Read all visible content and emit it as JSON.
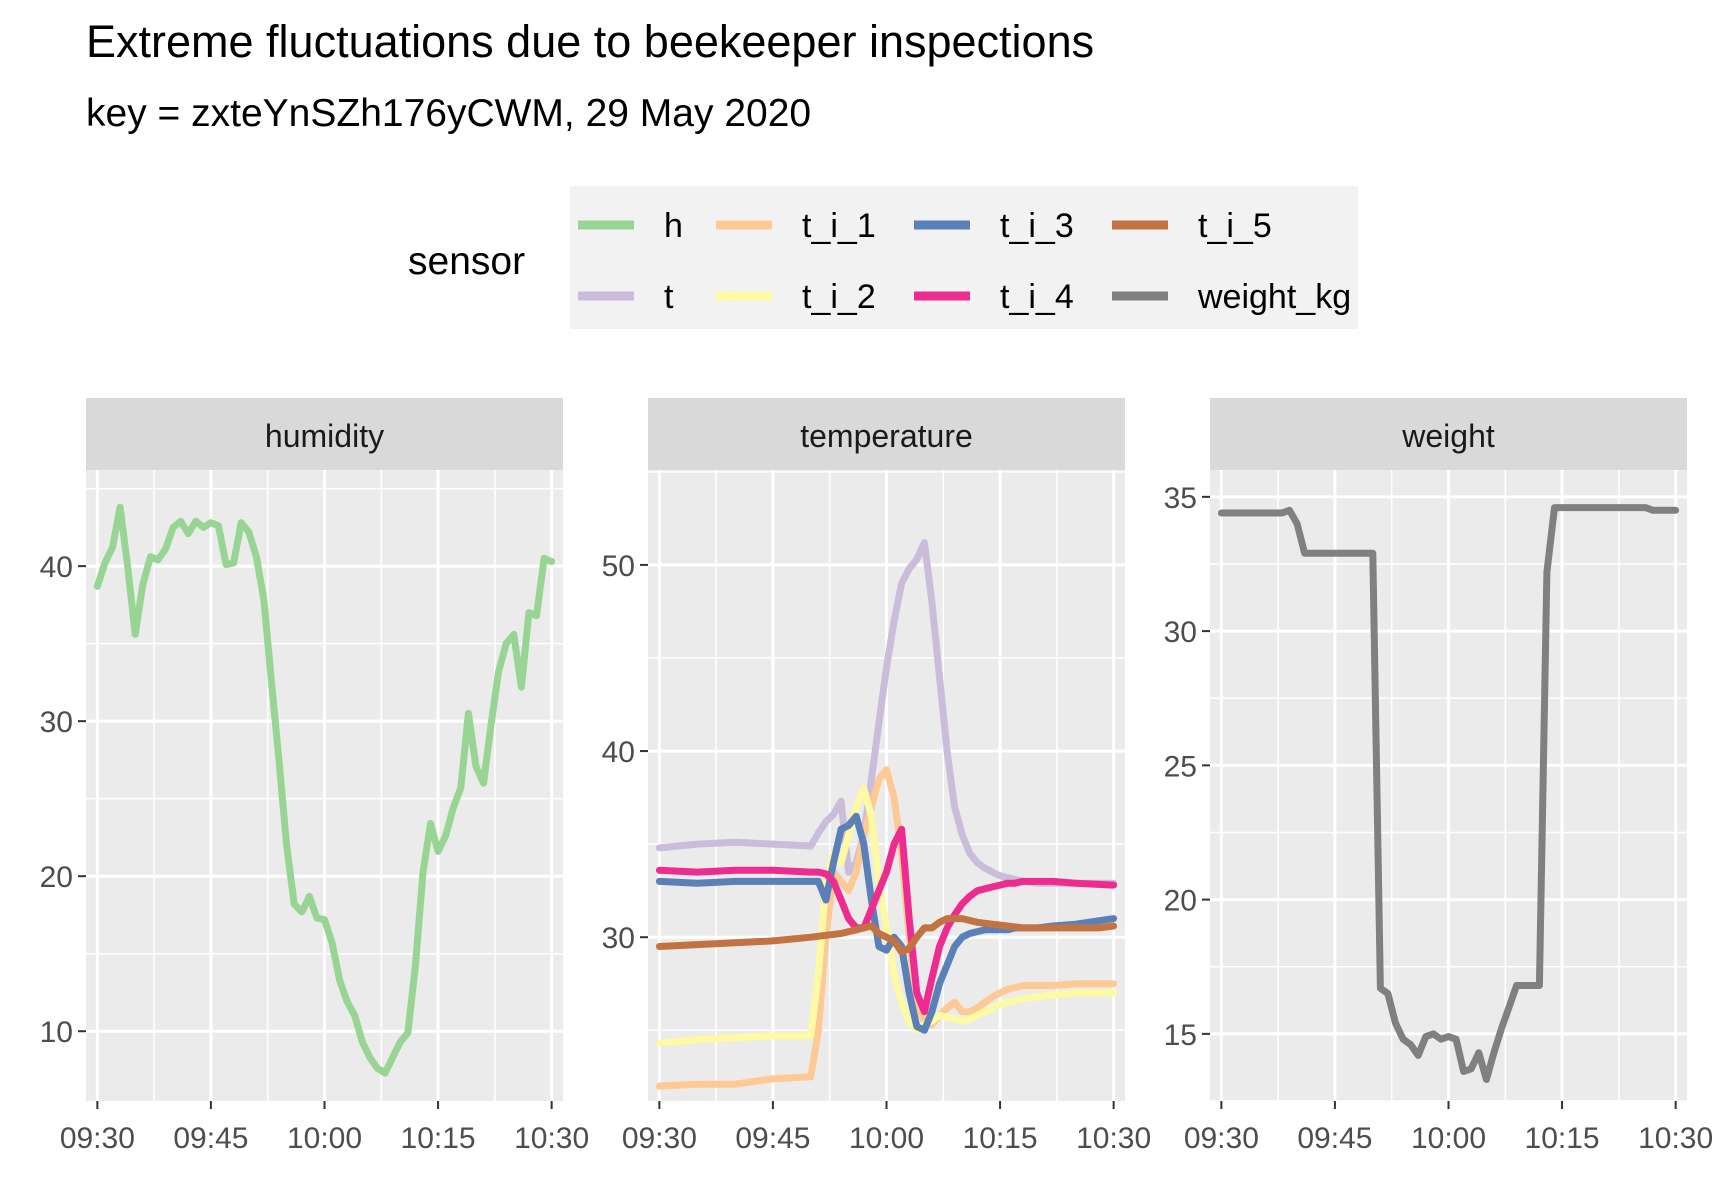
{
  "chart_data": {
    "type": "line",
    "title": "Extreme fluctuations due to beekeeper inspections",
    "subtitle": "key = zxteYnSZh176yCWM, 29 May 2020",
    "legend": {
      "title": "sensor",
      "placement": "top",
      "entries": [
        {
          "name": "h",
          "color": "#98d594"
        },
        {
          "name": "t",
          "color": "#cbbcdc"
        },
        {
          "name": "t_i_1",
          "color": "#fdc994"
        },
        {
          "name": "t_i_2",
          "color": "#fefaa4"
        },
        {
          "name": "t_i_3",
          "color": "#5b80b8"
        },
        {
          "name": "t_i_4",
          "color": "#ec2d8f"
        },
        {
          "name": "t_i_5",
          "color": "#c27341"
        },
        {
          "name": "weight_kg",
          "color": "#808080"
        }
      ]
    },
    "x_ticks": [
      "09:30",
      "09:45",
      "10:00",
      "10:15",
      "10:30"
    ],
    "x_range_minutes": [
      -1.5,
      61.5
    ],
    "grid": true,
    "panels": [
      {
        "strip": "humidity",
        "ylim": [
          5.5,
          46.2
        ],
        "y_ticks": [
          10,
          20,
          30,
          40
        ],
        "series": [
          {
            "name": "h",
            "color": "#98d594",
            "x": [
              0,
              1,
              2,
              3,
              4,
              5,
              6,
              7,
              8,
              9,
              10,
              11,
              12,
              13,
              14,
              15,
              16,
              17,
              18,
              19,
              20,
              21,
              22,
              23,
              24,
              25,
              26,
              27,
              28,
              29,
              30,
              31,
              32,
              33,
              34,
              35,
              36,
              37,
              38,
              39,
              40,
              41,
              42,
              43,
              44,
              45,
              46,
              47,
              48,
              49,
              50,
              51,
              52,
              53,
              54,
              55,
              56,
              57,
              58,
              59,
              60
            ],
            "y": [
              38.7,
              40.2,
              41.2,
              43.8,
              40.0,
              35.6,
              38.8,
              40.6,
              40.4,
              41.1,
              42.5,
              42.9,
              42.1,
              42.9,
              42.5,
              42.8,
              42.6,
              40.1,
              40.2,
              42.8,
              42.2,
              40.6,
              37.8,
              32.5,
              27.4,
              22.0,
              18.2,
              17.7,
              18.7,
              17.3,
              17.2,
              15.7,
              13.3,
              11.9,
              11.0,
              9.3,
              8.3,
              7.6,
              7.3,
              8.3,
              9.3,
              9.9,
              14.2,
              20.2,
              23.4,
              21.6,
              22.6,
              24.4,
              25.7,
              30.5,
              27.1,
              26.0,
              29.8,
              33.2,
              35.0,
              35.6,
              32.2,
              37.0,
              36.8,
              40.5,
              40.3
            ]
          }
        ]
      },
      {
        "strip": "temperature",
        "ylim": [
          21.2,
          55.1
        ],
        "y_ticks": [
          30,
          40,
          50
        ],
        "series": [
          {
            "name": "t",
            "color": "#cbbcdc",
            "x": [
              0,
              5,
              10,
              15,
              20,
              21,
              22,
              23,
              24,
              25,
              26,
              27,
              28,
              29,
              30,
              31,
              32,
              33,
              34,
              35,
              36,
              37,
              38,
              39,
              40,
              41,
              42,
              43,
              44,
              45,
              46,
              47,
              48,
              50,
              52,
              55,
              60
            ],
            "y": [
              34.8,
              35.0,
              35.1,
              35.0,
              34.9,
              35.6,
              36.2,
              36.6,
              37.3,
              33.5,
              34.0,
              35.5,
              38.5,
              41.5,
              44.5,
              47.0,
              49.0,
              49.8,
              50.3,
              51.2,
              48.0,
              44.0,
              40.0,
              37.0,
              35.5,
              34.5,
              34.0,
              33.7,
              33.5,
              33.3,
              33.2,
              33.1,
              33.0,
              32.9,
              32.9,
              32.9,
              32.9
            ]
          },
          {
            "name": "t_i_1",
            "color": "#fdc994",
            "x": [
              0,
              5,
              10,
              15,
              20,
              21,
              22,
              23,
              24,
              25,
              26,
              27,
              28,
              29,
              30,
              31,
              32,
              33,
              34,
              35,
              36,
              37,
              38,
              39,
              40,
              41,
              42,
              43,
              44,
              45,
              46,
              47,
              48,
              50,
              52,
              55,
              60
            ],
            "y": [
              22.0,
              22.1,
              22.1,
              22.4,
              22.5,
              25.0,
              30.0,
              33.5,
              33.0,
              32.5,
              33.5,
              35.5,
              37.0,
              38.5,
              39.0,
              37.5,
              34.5,
              30.0,
              26.3,
              25.5,
              25.3,
              25.8,
              26.2,
              26.5,
              26.0,
              26.0,
              26.2,
              26.5,
              26.8,
              27.0,
              27.2,
              27.3,
              27.4,
              27.4,
              27.4,
              27.5,
              27.5
            ]
          },
          {
            "name": "t_i_2",
            "color": "#fefaa4",
            "x": [
              0,
              5,
              10,
              15,
              20,
              21,
              22,
              23,
              24,
              25,
              26,
              27,
              28,
              29,
              30,
              31,
              32,
              33,
              34,
              35,
              36,
              37,
              38,
              39,
              40,
              41,
              42,
              43,
              44,
              45,
              46,
              47,
              48,
              50,
              52,
              55,
              60
            ],
            "y": [
              24.3,
              24.5,
              24.6,
              24.7,
              24.7,
              28.0,
              33.0,
              34.5,
              34.0,
              35.5,
              37.0,
              38.0,
              36.5,
              33.0,
              30.5,
              28.0,
              26.5,
              25.5,
              25.0,
              25.3,
              25.5,
              25.8,
              25.7,
              25.6,
              25.5,
              25.6,
              25.8,
              26.0,
              26.2,
              26.4,
              26.5,
              26.6,
              26.7,
              26.8,
              26.9,
              27.0,
              27.0
            ]
          },
          {
            "name": "t_i_3",
            "color": "#5b80b8",
            "x": [
              0,
              5,
              10,
              15,
              20,
              21,
              22,
              23,
              24,
              25,
              26,
              27,
              28,
              29,
              30,
              31,
              32,
              33,
              34,
              35,
              36,
              37,
              38,
              39,
              40,
              41,
              42,
              43,
              44,
              45,
              46,
              47,
              48,
              50,
              52,
              55,
              60
            ],
            "y": [
              33.0,
              32.9,
              33.0,
              33.0,
              33.0,
              33.0,
              32.0,
              34.0,
              35.8,
              36.0,
              36.5,
              35.0,
              32.0,
              29.5,
              29.3,
              30.0,
              29.5,
              27.0,
              25.2,
              25.0,
              26.0,
              27.5,
              28.5,
              29.5,
              30.0,
              30.2,
              30.3,
              30.4,
              30.4,
              30.4,
              30.4,
              30.5,
              30.5,
              30.5,
              30.6,
              30.7,
              31.0
            ]
          },
          {
            "name": "t_i_4",
            "color": "#ec2d8f",
            "x": [
              0,
              5,
              10,
              15,
              20,
              21,
              22,
              23,
              24,
              25,
              26,
              27,
              28,
              29,
              30,
              31,
              32,
              33,
              34,
              35,
              36,
              37,
              38,
              39,
              40,
              41,
              42,
              43,
              44,
              45,
              46,
              47,
              48,
              50,
              52,
              55,
              60
            ],
            "y": [
              33.6,
              33.5,
              33.6,
              33.6,
              33.5,
              33.5,
              33.4,
              33.0,
              32.0,
              31.0,
              30.5,
              30.5,
              31.5,
              32.5,
              33.5,
              35.0,
              35.8,
              31.0,
              27.0,
              26.0,
              27.8,
              29.5,
              30.5,
              31.2,
              31.8,
              32.2,
              32.5,
              32.6,
              32.7,
              32.8,
              32.9,
              32.9,
              33.0,
              33.0,
              33.0,
              32.9,
              32.8
            ]
          },
          {
            "name": "t_i_5",
            "color": "#c27341",
            "x": [
              0,
              5,
              10,
              15,
              20,
              22,
              24,
              26,
              27,
              28,
              29,
              30,
              31,
              32,
              33,
              34,
              35,
              36,
              37,
              38,
              40,
              42,
              44,
              46,
              48,
              50,
              52,
              55,
              58,
              60
            ],
            "y": [
              29.5,
              29.6,
              29.7,
              29.8,
              30.0,
              30.1,
              30.2,
              30.4,
              30.5,
              30.6,
              30.2,
              30.0,
              29.8,
              29.2,
              29.4,
              30.0,
              30.5,
              30.5,
              30.8,
              31.0,
              31.0,
              30.8,
              30.7,
              30.6,
              30.5,
              30.5,
              30.5,
              30.5,
              30.5,
              30.6
            ]
          }
        ]
      },
      {
        "strip": "weight",
        "ylim": [
          12.5,
          36.0
        ],
        "y_ticks": [
          15,
          20,
          25,
          30,
          35
        ],
        "series": [
          {
            "name": "weight_kg",
            "color": "#808080",
            "x": [
              0,
              8,
              9,
              10,
              11,
              12,
              13,
              14,
              15,
              16,
              17,
              18,
              19,
              20,
              21,
              22,
              23,
              24,
              25,
              26,
              27,
              28,
              29,
              30,
              31,
              32,
              33,
              34,
              35,
              36,
              37,
              38,
              39,
              40,
              41,
              42,
              43,
              44,
              45,
              46,
              47,
              48,
              49,
              50,
              51,
              52,
              53,
              54,
              55,
              56,
              57,
              58,
              59,
              60
            ],
            "y": [
              34.4,
              34.4,
              34.5,
              34.0,
              32.9,
              32.9,
              32.9,
              32.9,
              32.9,
              32.9,
              32.9,
              32.9,
              32.9,
              32.9,
              16.7,
              16.5,
              15.4,
              14.8,
              14.6,
              14.2,
              14.9,
              15.0,
              14.8,
              14.9,
              14.8,
              13.6,
              13.7,
              14.3,
              13.3,
              14.3,
              15.2,
              16.0,
              16.8,
              16.8,
              16.8,
              16.8,
              32.2,
              34.6,
              34.6,
              34.6,
              34.6,
              34.6,
              34.6,
              34.6,
              34.6,
              34.6,
              34.6,
              34.6,
              34.6,
              34.6,
              34.5,
              34.5,
              34.5,
              34.5
            ]
          }
        ]
      }
    ]
  }
}
